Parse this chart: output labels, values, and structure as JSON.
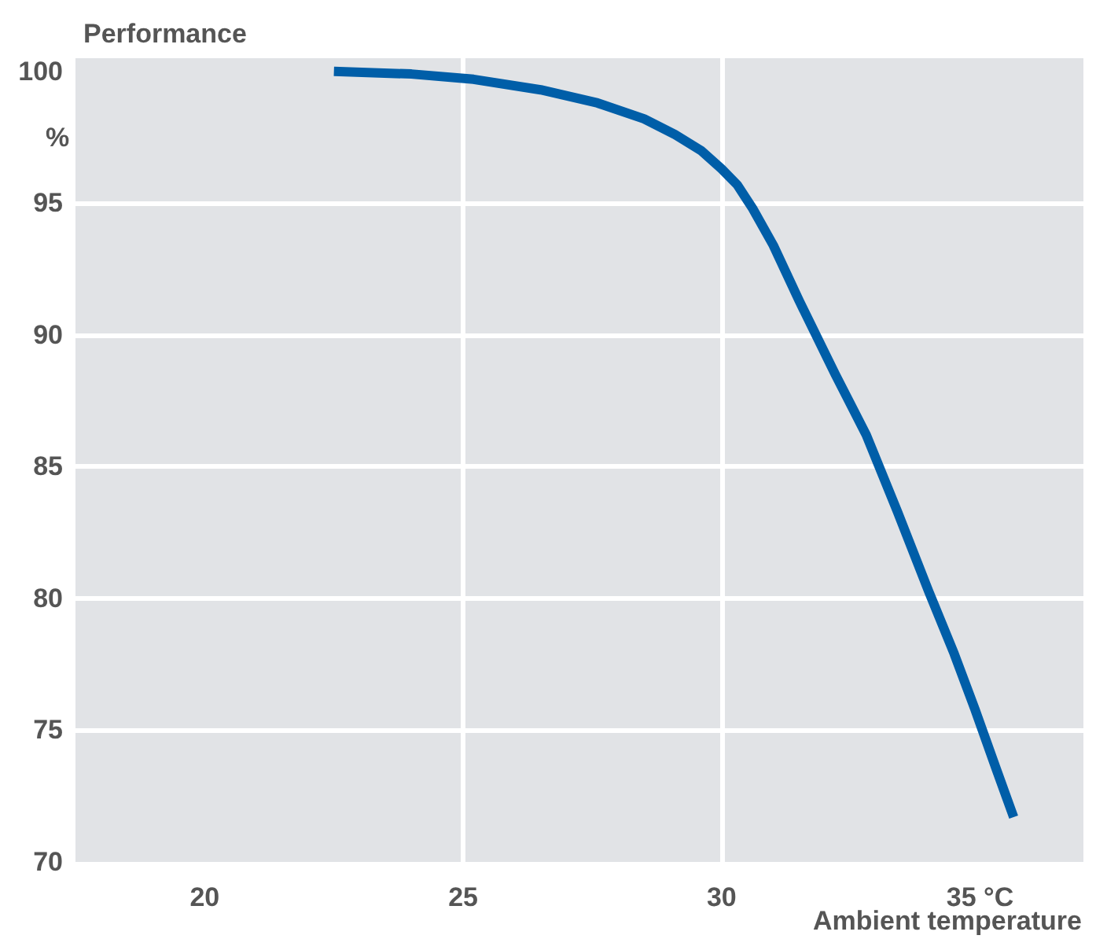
{
  "chart_data": {
    "type": "line",
    "title": "Performance",
    "ylabel": "%",
    "xlabel": "Ambient temperature",
    "x": [
      22.5,
      24,
      25.2,
      26.5,
      27.6,
      28.5,
      29.1,
      29.6,
      30,
      30.3,
      30.6,
      31,
      31.5,
      32.2,
      32.8,
      33.4,
      34,
      34.5,
      34.9,
      35.3,
      35.65
    ],
    "series": [
      {
        "color": "#005ea8",
        "values": [
          100,
          99.9,
          99.7,
          99.3,
          98.8,
          98.2,
          97.6,
          97,
          96.3,
          95.7,
          94.8,
          93.4,
          91.3,
          88.5,
          86.2,
          83.3,
          80.3,
          77.9,
          75.8,
          73.6,
          71.7
        ]
      }
    ],
    "xlim": [
      17.5,
      37
    ],
    "xticks": [
      20,
      25,
      30,
      {
        "value": 35,
        "label": "35 °C"
      }
    ],
    "ylim": [
      70,
      100.5
    ],
    "yticks": [
      70,
      75,
      80,
      85,
      90,
      95,
      100
    ],
    "grid": true,
    "marker": "none",
    "line_style": "solid"
  }
}
